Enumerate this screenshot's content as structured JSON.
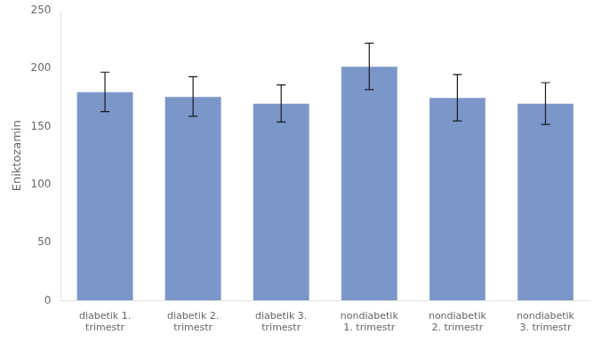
{
  "chart_data": {
    "type": "bar",
    "categories": [
      "diabetik 1.\ntrimestr",
      "diabetik 2.\ntrimestr",
      "diabetik 3.\ntrimestr",
      "nondiabetik\n1. trimestr",
      "nondiabetik\n2. trimestr",
      "nondiabetik\n3. trimestr"
    ],
    "values": [
      180,
      176,
      170,
      202,
      175,
      170
    ],
    "errors": [
      17,
      17,
      16,
      20,
      20,
      18
    ],
    "color": "#7b96c8",
    "ylabel": "Eniktozamin",
    "ylim": [
      0,
      250
    ],
    "yticks": [
      0,
      50,
      100,
      150,
      200,
      250
    ],
    "grid": false
  }
}
